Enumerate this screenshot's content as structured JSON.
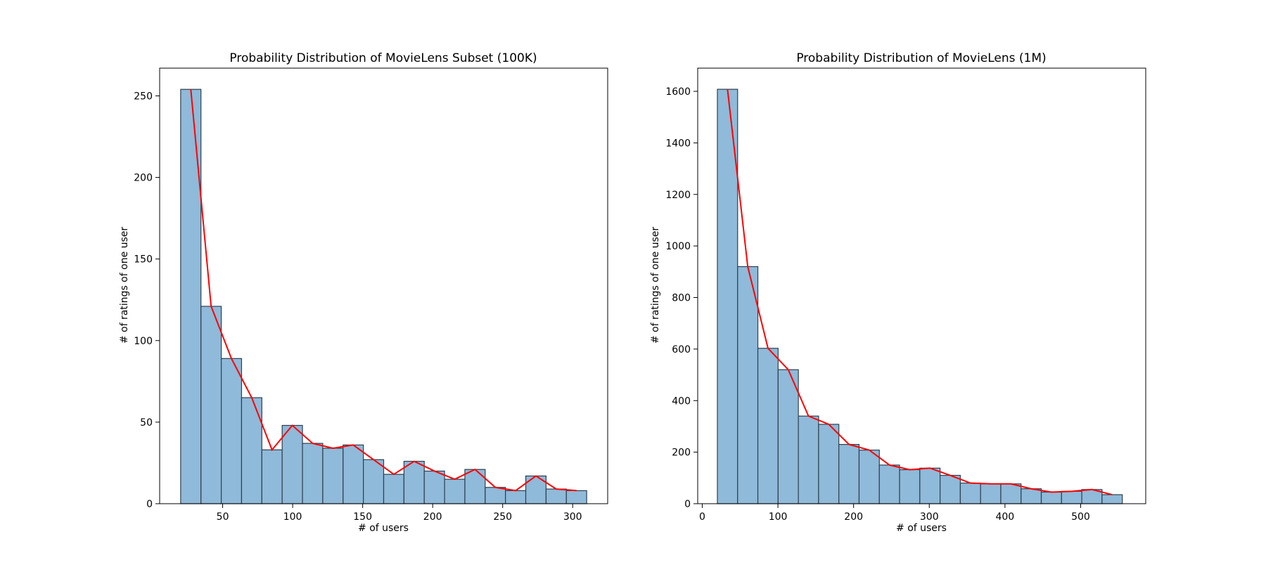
{
  "chart_data": [
    {
      "type": "bar",
      "title": "Probability Distribution of MovieLens Subset (100K)",
      "xlabel": "# of users",
      "ylabel": "# of ratings of one user",
      "xlim": [
        5,
        325
      ],
      "ylim": [
        0,
        267
      ],
      "xticks": [
        50,
        100,
        150,
        200,
        250,
        300
      ],
      "yticks": [
        0,
        50,
        100,
        150,
        200,
        250
      ],
      "bin_start": 20,
      "bin_width": 14.5,
      "values": [
        254,
        121,
        89,
        65,
        33,
        48,
        37,
        34,
        36,
        27,
        18,
        26,
        20,
        15,
        21,
        10,
        8,
        17,
        9,
        8
      ],
      "line_values": [
        254,
        121,
        89,
        65,
        33,
        48,
        37,
        34,
        36,
        27,
        18,
        26,
        20,
        15,
        21,
        10,
        8,
        17,
        9,
        8
      ],
      "colors": {
        "bar": "#8fbad9",
        "bar_edge": "#2f3f4f",
        "line": "#ff0000"
      }
    },
    {
      "type": "bar",
      "title": "Probability Distribution of MovieLens (1M)",
      "xlabel": "# of users",
      "ylabel": "# of ratings of one user",
      "xlim": [
        -6,
        586
      ],
      "ylim": [
        0,
        1690
      ],
      "xticks": [
        0,
        100,
        200,
        300,
        400,
        500
      ],
      "yticks": [
        0,
        200,
        400,
        600,
        800,
        1000,
        1200,
        1400,
        1600
      ],
      "bin_start": 20,
      "bin_width": 26.75,
      "values": [
        1608,
        920,
        603,
        520,
        340,
        308,
        230,
        208,
        150,
        132,
        138,
        110,
        80,
        77,
        77,
        58,
        45,
        48,
        55,
        35
      ],
      "line_values": [
        1608,
        920,
        603,
        520,
        340,
        308,
        230,
        208,
        150,
        132,
        138,
        110,
        80,
        77,
        77,
        58,
        45,
        48,
        55,
        35
      ],
      "colors": {
        "bar": "#8fbad9",
        "bar_edge": "#2f3f4f",
        "line": "#ff0000"
      }
    }
  ]
}
